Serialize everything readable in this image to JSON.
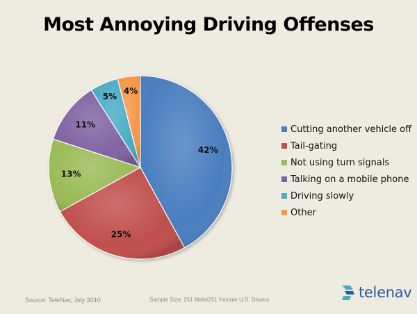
{
  "chart_data": {
    "type": "pie",
    "title": "Most Annoying Driving Offenses",
    "slices": [
      {
        "label": "Cutting another vehicle off",
        "value": 42,
        "display": "42%",
        "color": "#4a7ebf"
      },
      {
        "label": "Tail-gating",
        "value": 25,
        "display": "25%",
        "color": "#c0504d"
      },
      {
        "label": "Not using turn signals",
        "value": 13,
        "display": "13%",
        "color": "#9bbb59"
      },
      {
        "label": "Talking on a mobile phone",
        "value": 11,
        "display": "11%",
        "color": "#8064a2"
      },
      {
        "label": "Driving slowly",
        "value": 5,
        "display": "5%",
        "color": "#4bacc6"
      },
      {
        "label": "Other",
        "value": 4,
        "display": "4%",
        "color": "#f79646"
      }
    ],
    "legend_position": "right"
  },
  "footer": {
    "source": "Source: TeleNav, July 2010",
    "sample": "Sample Size: 251 Male/251 Female U.S. Drivers",
    "brand": "telenav"
  }
}
